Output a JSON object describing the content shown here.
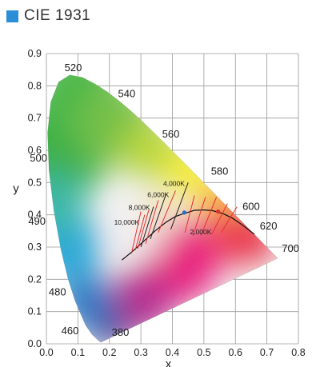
{
  "title": "CIE 1931",
  "colors": {
    "title_swatch": "#2a8fd6",
    "grid": "#9a9a9a",
    "locus_line": "#111111",
    "isotemp_red": "#e33030",
    "isotemp_dark": "#222222",
    "point_blue": "#1f6fd1",
    "point_red": "#d93030"
  },
  "chart_data": {
    "type": "scatter",
    "xlabel": "x",
    "ylabel": "y",
    "xlim": [
      0,
      0.8
    ],
    "ylim": [
      0,
      0.9
    ],
    "grid": true,
    "x_ticks": [
      "0.0",
      "0.1",
      "0.2",
      "0.3",
      "0.4",
      "0.5",
      "0.6",
      "0.7",
      "0.8"
    ],
    "y_ticks": [
      "0.0",
      "0.1",
      "0.2",
      "0.3",
      "0.4",
      "0.5",
      "0.6",
      "0.7",
      "0.8",
      "0.9"
    ],
    "spectral_locus": [
      [
        0.1741,
        0.005
      ],
      [
        0.1738,
        0.0049
      ],
      [
        0.1733,
        0.0048
      ],
      [
        0.1726,
        0.0048
      ],
      [
        0.1714,
        0.0051
      ],
      [
        0.1689,
        0.0069
      ],
      [
        0.1644,
        0.0109
      ],
      [
        0.1566,
        0.0177
      ],
      [
        0.144,
        0.0297
      ],
      [
        0.1241,
        0.0578
      ],
      [
        0.0913,
        0.1327
      ],
      [
        0.0687,
        0.2007
      ],
      [
        0.0454,
        0.295
      ],
      [
        0.0235,
        0.4127
      ],
      [
        0.0082,
        0.5384
      ],
      [
        0.0039,
        0.6548
      ],
      [
        0.0139,
        0.7502
      ],
      [
        0.0389,
        0.812
      ],
      [
        0.0743,
        0.8338
      ],
      [
        0.1142,
        0.8262
      ],
      [
        0.1547,
        0.8059
      ],
      [
        0.1929,
        0.7816
      ],
      [
        0.2296,
        0.7543
      ],
      [
        0.2658,
        0.7243
      ],
      [
        0.3016,
        0.6923
      ],
      [
        0.3373,
        0.6589
      ],
      [
        0.3731,
        0.6245
      ],
      [
        0.4087,
        0.5896
      ],
      [
        0.4441,
        0.5547
      ],
      [
        0.4788,
        0.5202
      ],
      [
        0.5125,
        0.4866
      ],
      [
        0.5448,
        0.4544
      ],
      [
        0.5752,
        0.4242
      ],
      [
        0.6029,
        0.3965
      ],
      [
        0.627,
        0.3725
      ],
      [
        0.6482,
        0.3514
      ],
      [
        0.6658,
        0.334
      ],
      [
        0.6801,
        0.3197
      ],
      [
        0.6915,
        0.3083
      ],
      [
        0.7006,
        0.2993
      ],
      [
        0.7079,
        0.292
      ],
      [
        0.714,
        0.2859
      ],
      [
        0.719,
        0.2809
      ],
      [
        0.723,
        0.277
      ],
      [
        0.726,
        0.274
      ],
      [
        0.7283,
        0.2717
      ],
      [
        0.73,
        0.27
      ],
      [
        0.7311,
        0.2689
      ],
      [
        0.732,
        0.268
      ],
      [
        0.7327,
        0.2673
      ],
      [
        0.7334,
        0.2666
      ],
      [
        0.734,
        0.266
      ],
      [
        0.7344,
        0.2656
      ],
      [
        0.7346,
        0.2654
      ],
      [
        0.7347,
        0.2653
      ]
    ],
    "wavelength_labels": [
      {
        "text": "520",
        "x": 0.085,
        "y": 0.845
      },
      {
        "text": "540",
        "x": 0.255,
        "y": 0.765
      },
      {
        "text": "560",
        "x": 0.395,
        "y": 0.64
      },
      {
        "text": "580",
        "x": 0.55,
        "y": 0.525
      },
      {
        "text": "600",
        "x": 0.65,
        "y": 0.415
      },
      {
        "text": "620",
        "x": 0.705,
        "y": 0.355
      },
      {
        "text": "700",
        "x": 0.775,
        "y": 0.285
      },
      {
        "text": "500",
        "x": -0.025,
        "y": 0.565
      },
      {
        "text": "490",
        "x": -0.03,
        "y": 0.37
      },
      {
        "text": "480",
        "x": 0.035,
        "y": 0.15
      },
      {
        "text": "460",
        "x": 0.075,
        "y": 0.03
      },
      {
        "text": "380",
        "x": 0.235,
        "y": 0.025
      }
    ],
    "planckian_locus": [
      [
        0.24,
        0.26
      ],
      [
        0.255,
        0.272
      ],
      [
        0.27,
        0.284
      ],
      [
        0.285,
        0.297
      ],
      [
        0.3,
        0.31
      ],
      [
        0.32,
        0.328
      ],
      [
        0.345,
        0.35
      ],
      [
        0.38,
        0.377
      ],
      [
        0.41,
        0.395
      ],
      [
        0.437,
        0.404
      ],
      [
        0.47,
        0.414
      ],
      [
        0.5,
        0.415
      ],
      [
        0.527,
        0.413
      ],
      [
        0.56,
        0.404
      ],
      [
        0.59,
        0.39
      ],
      [
        0.62,
        0.37
      ],
      [
        0.66,
        0.34
      ]
    ],
    "isotemperature_lines": [
      {
        "color": "red",
        "x": [
          0.27,
          0.3
        ],
        "y": [
          0.28,
          0.41
        ]
      },
      {
        "color": "red",
        "x": [
          0.282,
          0.312
        ],
        "y": [
          0.29,
          0.4
        ]
      },
      {
        "color": "red",
        "x": [
          0.29,
          0.325
        ],
        "y": [
          0.295,
          0.415
        ]
      },
      {
        "color": "dark",
        "x": [
          0.3,
          0.34
        ],
        "y": [
          0.3,
          0.425
        ]
      },
      {
        "color": "red",
        "x": [
          0.315,
          0.355
        ],
        "y": [
          0.31,
          0.445
        ]
      },
      {
        "color": "dark",
        "x": [
          0.33,
          0.38
        ],
        "y": [
          0.325,
          0.465
        ]
      },
      {
        "color": "red",
        "x": [
          0.355,
          0.41
        ],
        "y": [
          0.345,
          0.475
        ]
      },
      {
        "color": "dark",
        "x": [
          0.395,
          0.45
        ],
        "y": [
          0.355,
          0.5
        ]
      },
      {
        "color": "red",
        "x": [
          0.44,
          0.47
        ],
        "y": [
          0.345,
          0.46
        ]
      },
      {
        "color": "red",
        "x": [
          0.465,
          0.505
        ],
        "y": [
          0.335,
          0.455
        ]
      },
      {
        "color": "red",
        "x": [
          0.49,
          0.54
        ],
        "y": [
          0.335,
          0.455
        ]
      },
      {
        "color": "red",
        "x": [
          0.525,
          0.575
        ],
        "y": [
          0.34,
          0.435
        ]
      },
      {
        "color": "red",
        "x": [
          0.555,
          0.605
        ],
        "y": [
          0.345,
          0.425
        ]
      }
    ],
    "cct_labels": [
      {
        "text": "4,000K",
        "x": 0.405,
        "y": 0.49
      },
      {
        "text": "6,000K",
        "x": 0.355,
        "y": 0.455
      },
      {
        "text": "8,000K",
        "x": 0.295,
        "y": 0.415
      },
      {
        "text": "10,000K",
        "x": 0.255,
        "y": 0.37
      },
      {
        "text": "2,000K",
        "x": 0.49,
        "y": 0.34
      }
    ],
    "points": [
      {
        "x": 0.438,
        "y": 0.407,
        "color": "blue"
      },
      {
        "x": 0.545,
        "y": 0.41,
        "color": "red"
      }
    ]
  }
}
